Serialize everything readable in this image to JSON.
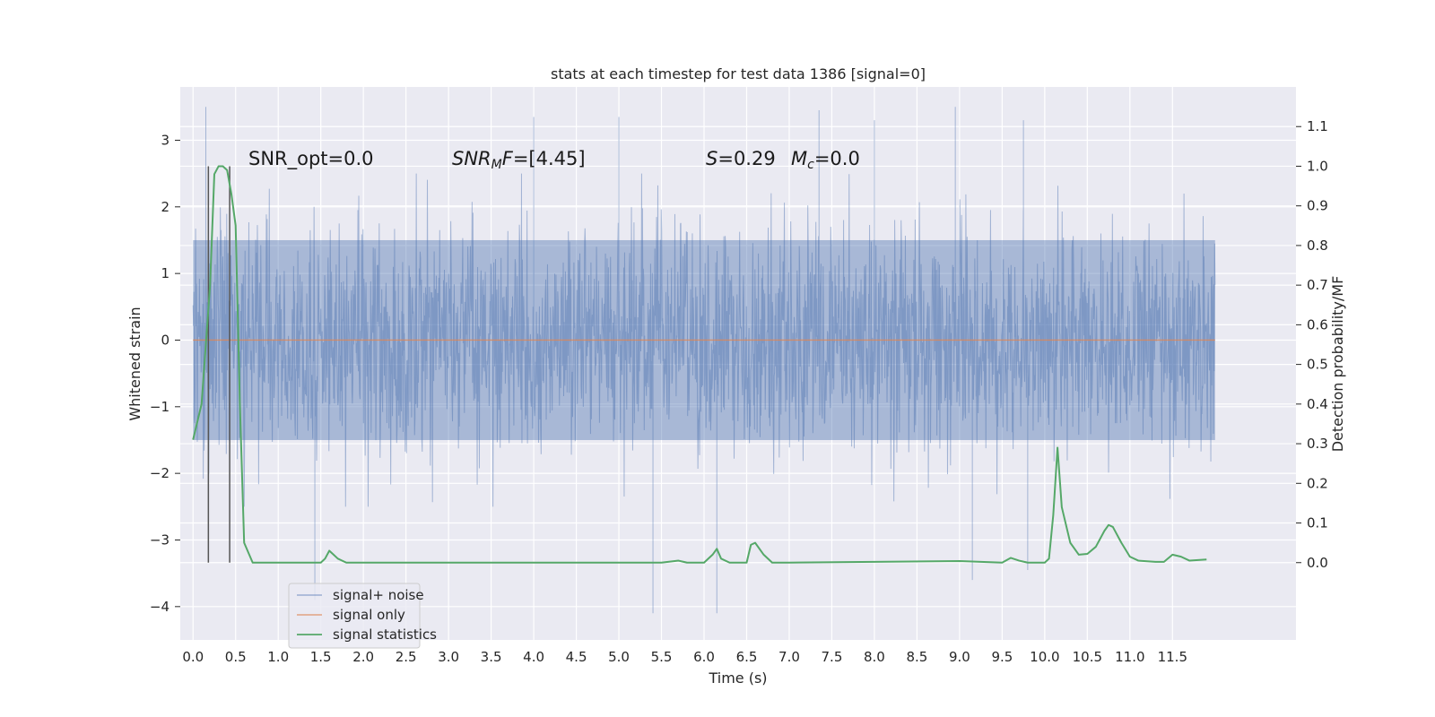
{
  "chart_data": {
    "type": "line",
    "title": "stats at each timestep for test data 1386 [signal=0]",
    "xlabel": "Time (s)",
    "ylabel": "Whitened strain",
    "ylabel_right": "Detection probability/MF",
    "xlim": [
      -0.15,
      12.95
    ],
    "ylim": [
      -4.5,
      3.8
    ],
    "ylim_right": [
      -0.195,
      1.2
    ],
    "x_ticks": [
      "0.0",
      "0.5",
      "1.0",
      "1.5",
      "2.0",
      "2.5",
      "3.0",
      "3.5",
      "4.0",
      "4.5",
      "5.0",
      "5.5",
      "6.0",
      "6.5",
      "7.0",
      "7.5",
      "8.0",
      "8.5",
      "9.0",
      "9.5",
      "10.0",
      "10.5",
      "11.0",
      "11.5"
    ],
    "y_ticks": [
      "−4",
      "−3",
      "−2",
      "−1",
      "0",
      "1",
      "2",
      "3"
    ],
    "y_ticks_right": [
      "0.0",
      "0.1",
      "0.2",
      "0.3",
      "0.4",
      "0.5",
      "0.6",
      "0.7",
      "0.8",
      "0.9",
      "1.0",
      "1.1"
    ],
    "grid": true,
    "legend_placement": "lower-left",
    "colors": {
      "noise": "#4c72b0",
      "signal": "#dd8452",
      "stats": "#55a868",
      "background": "#eaeaf2",
      "marker": "#555555"
    },
    "series": [
      {
        "name": "signal+ noise",
        "axis": "left",
        "description_values": "dense noise, mostly within [-2.2, 2.2]",
        "envelope_peaks": [
          [
            0.15,
            3.5
          ],
          [
            1.43,
            -3.9
          ],
          [
            4.0,
            3.35
          ],
          [
            5.0,
            3.35
          ],
          [
            5.4,
            -4.1
          ],
          [
            6.15,
            -4.1
          ],
          [
            8.0,
            3.3
          ],
          [
            9.15,
            -3.6
          ],
          [
            9.75,
            3.3
          ],
          [
            9.8,
            -3.45
          ],
          [
            7.35,
            3.45
          ],
          [
            8.95,
            3.5
          ]
        ],
        "duration_s": 12.0,
        "typical_amplitude": 1.5
      },
      {
        "name": "signal only",
        "axis": "left",
        "x": [
          0.0,
          12.0
        ],
        "y": [
          0.0,
          0.0
        ]
      },
      {
        "name": "signal statistics",
        "axis": "right",
        "x": [
          0.0,
          0.1,
          0.2,
          0.25,
          0.3,
          0.35,
          0.4,
          0.45,
          0.5,
          0.55,
          0.6,
          0.7,
          0.8,
          1.0,
          1.2,
          1.4,
          1.5,
          1.55,
          1.6,
          1.65,
          1.7,
          1.8,
          2.0,
          3.0,
          4.0,
          4.5,
          5.0,
          5.5,
          5.7,
          5.8,
          6.0,
          6.1,
          6.15,
          6.2,
          6.3,
          6.4,
          6.5,
          6.55,
          6.6,
          6.7,
          6.8,
          7.0,
          8.0,
          9.0,
          9.5,
          9.6,
          9.7,
          9.8,
          10.0,
          10.05,
          10.1,
          10.15,
          10.2,
          10.3,
          10.4,
          10.5,
          10.6,
          10.7,
          10.75,
          10.8,
          10.9,
          11.0,
          11.1,
          11.3,
          11.4,
          11.5,
          11.6,
          11.7,
          11.9
        ],
        "y": [
          0.31,
          0.4,
          0.7,
          0.98,
          1.0,
          1.0,
          0.99,
          0.93,
          0.85,
          0.4,
          0.05,
          0.0,
          0.0,
          0.0,
          0.0,
          0.0,
          0.0,
          0.01,
          0.03,
          0.02,
          0.01,
          0.0,
          0.0,
          0.0,
          0.0,
          0.0,
          0.0,
          0.0,
          0.005,
          0.0,
          0.0,
          0.02,
          0.035,
          0.01,
          0.0,
          0.0,
          0.0,
          0.045,
          0.05,
          0.02,
          0.0,
          0.0,
          0.002,
          0.004,
          0.0,
          0.012,
          0.005,
          0.0,
          0.0,
          0.01,
          0.12,
          0.29,
          0.14,
          0.05,
          0.02,
          0.022,
          0.04,
          0.08,
          0.095,
          0.09,
          0.05,
          0.015,
          0.005,
          0.002,
          0.002,
          0.02,
          0.015,
          0.005,
          0.008
        ]
      }
    ],
    "vertical_markers_x": [
      0.18,
      0.43
    ],
    "annotations": [
      {
        "prefix": "SNR_opt=",
        "value": "0.0"
      },
      {
        "prefix": "SNR",
        "sub": "M",
        "suffix": "F=",
        "value": "[4.45]"
      },
      {
        "prefix": "S",
        "value": "=0.29"
      },
      {
        "prefix": "M",
        "sub": "c",
        "value": "=0.0"
      }
    ]
  },
  "legend": {
    "items": [
      {
        "label": "signal+ noise",
        "color": "#4c72b0"
      },
      {
        "label": "signal only",
        "color": "#dd8452"
      },
      {
        "label": "signal statistics",
        "color": "#55a868"
      }
    ]
  }
}
